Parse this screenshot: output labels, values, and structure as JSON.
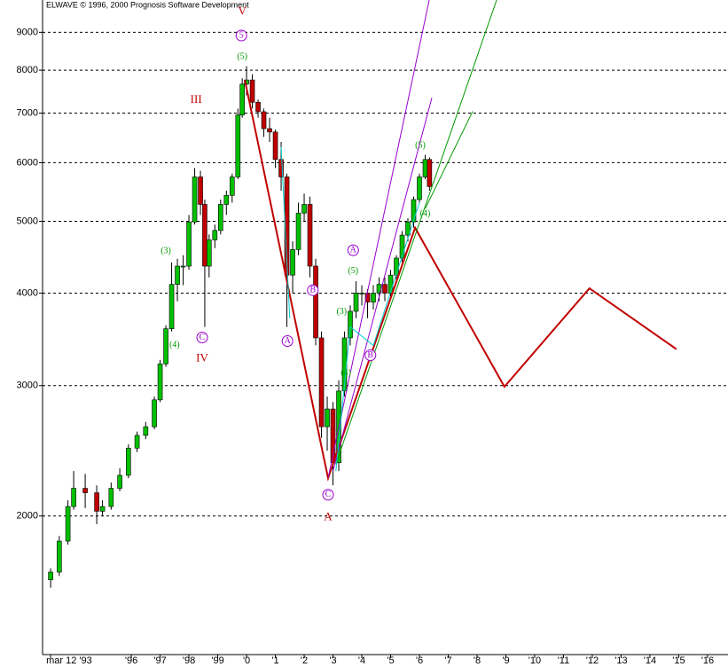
{
  "chart_data": {
    "type": "candlestick",
    "title": "ELWAVE © 1996, 2000 Prognosis Software Development",
    "log_scale": true,
    "grid": true,
    "up_color": "#00c000",
    "down_color": "#c00000",
    "xlim": [
      1992.92,
      2016.71
    ],
    "ylim": [
      1300,
      9950
    ],
    "yticks": [
      2000,
      3000,
      4000,
      5000,
      6000,
      7000,
      8000,
      9000
    ],
    "xticks": [
      {
        "value": 1993.2,
        "label": "mar 12 '93"
      },
      {
        "value": 1996,
        "label": "'96"
      },
      {
        "value": 1997,
        "label": "'97"
      },
      {
        "value": 1998,
        "label": "'98"
      },
      {
        "value": 1999,
        "label": "'99"
      },
      {
        "value": 2000,
        "label": "'0"
      },
      {
        "value": 2001,
        "label": "'1"
      },
      {
        "value": 2002,
        "label": "'2"
      },
      {
        "value": 2003,
        "label": "'3"
      },
      {
        "value": 2004,
        "label": "'4"
      },
      {
        "value": 2005,
        "label": "'5"
      },
      {
        "value": 2006,
        "label": "'6"
      },
      {
        "value": 2007,
        "label": "'7"
      },
      {
        "value": 2008,
        "label": "'8"
      },
      {
        "value": 2009,
        "label": "'9"
      },
      {
        "value": 2010,
        "label": "'10"
      },
      {
        "value": 2011,
        "label": "'11"
      },
      {
        "value": 2012,
        "label": "'12"
      },
      {
        "value": 2013,
        "label": "'13"
      },
      {
        "value": 2014,
        "label": "'14"
      },
      {
        "value": 2015,
        "label": "'15"
      },
      {
        "value": 2016,
        "label": "'16"
      }
    ],
    "x": [
      1993.2,
      1993.5,
      1993.8,
      1994.0,
      1994.4,
      1994.8,
      1995.0,
      1995.3,
      1995.6,
      1995.9,
      1996.2,
      1996.5,
      1996.8,
      1997.0,
      1997.2,
      1997.4,
      1997.6,
      1997.8,
      1998.0,
      1998.2,
      1998.4,
      1998.55,
      1998.7,
      1998.9,
      1999.1,
      1999.3,
      1999.5,
      1999.7,
      1999.85,
      2000.0,
      2000.2,
      2000.4,
      2000.6,
      2000.8,
      2001.0,
      2001.2,
      2001.4,
      2001.6,
      2001.8,
      2002.0,
      2002.2,
      2002.4,
      2002.6,
      2002.8,
      2003.0,
      2003.2,
      2003.4,
      2003.6,
      2003.8,
      2004.0,
      2004.2,
      2004.4,
      2004.6,
      2004.8,
      2005.0,
      2005.2,
      2005.4,
      2005.6,
      2005.8,
      2006.0,
      2006.2,
      2006.35
    ],
    "open": [
      1640,
      1680,
      1850,
      2060,
      2180,
      2150,
      2030,
      2060,
      2180,
      2270,
      2470,
      2570,
      2640,
      2870,
      3210,
      3580,
      4110,
      4350,
      4350,
      4990,
      5740,
      5270,
      4350,
      4720,
      4860,
      5270,
      5420,
      5740,
      6960,
      7660,
      7760,
      7240,
      7030,
      6670,
      6600,
      6060,
      5740,
      4230,
      4580,
      5130,
      5270,
      4350,
      3480,
      2640,
      2790,
      2360,
      2950,
      3480,
      3780,
      4000,
      4000,
      3890,
      4000,
      4110,
      4000,
      4230,
      4460,
      4790,
      4990,
      5350,
      5740,
      6060
    ],
    "high": [
      1700,
      1880,
      2100,
      2300,
      2280,
      2200,
      2100,
      2220,
      2320,
      2500,
      2600,
      2680,
      2900,
      3250,
      3620,
      4400,
      4450,
      4500,
      5100,
      5900,
      5850,
      5350,
      4800,
      4950,
      5350,
      5500,
      5800,
      7100,
      7800,
      8100,
      7900,
      7300,
      7100,
      6900,
      6650,
      6400,
      5800,
      4700,
      5300,
      5450,
      5400,
      4450,
      3550,
      2900,
      2850,
      3050,
      3550,
      3850,
      4150,
      4100,
      4050,
      4100,
      4200,
      4200,
      4300,
      4500,
      4850,
      5050,
      5400,
      5800,
      6150,
      6100
    ],
    "low": [
      1600,
      1660,
      1830,
      2040,
      2050,
      1950,
      2000,
      2040,
      2160,
      2250,
      2440,
      2540,
      2620,
      2850,
      3180,
      3550,
      3900,
      4100,
      4300,
      4950,
      5100,
      3600,
      4200,
      4600,
      4800,
      5100,
      5300,
      5700,
      6900,
      7400,
      7100,
      6900,
      6500,
      6400,
      5900,
      5500,
      3600,
      4000,
      4500,
      5000,
      4200,
      3400,
      2550,
      2450,
      2200,
      2300,
      2900,
      3400,
      3700,
      3850,
      3700,
      3800,
      3900,
      3900,
      3950,
      4150,
      4400,
      4700,
      4900,
      5300,
      5700,
      5500
    ],
    "close": [
      1680,
      1850,
      2060,
      2180,
      2150,
      2030,
      2060,
      2180,
      2270,
      2470,
      2570,
      2640,
      2870,
      3210,
      3580,
      4110,
      4350,
      4350,
      4990,
      5740,
      5270,
      4350,
      4720,
      4860,
      5270,
      5420,
      5740,
      6960,
      7660,
      7760,
      7240,
      7030,
      6670,
      6600,
      6060,
      5740,
      4230,
      4580,
      5130,
      5270,
      4350,
      3480,
      2640,
      2790,
      2360,
      2950,
      3480,
      3780,
      4000,
      4000,
      3890,
      4000,
      4110,
      4000,
      4230,
      4460,
      4790,
      4990,
      5350,
      5740,
      6060,
      5570
    ],
    "lines": [
      {
        "color": "#c00000",
        "x": [
          1999.94,
          2002.83,
          2005.85,
          2008.95,
          2011.9,
          2014.92
        ],
        "y": [
          7760,
          2250,
          4900,
          2990,
          4060,
          3360
        ]
      },
      {
        "color": "#9900cc",
        "x": [
          2002.83,
          2006.34
        ],
        "y": [
          2250,
          9950
        ]
      },
      {
        "color": "#9900cc",
        "x": [
          2003.0,
          2006.43
        ],
        "y": [
          2300,
          7340
        ]
      },
      {
        "color": "#009900",
        "x": [
          2003.1,
          2008.68
        ],
        "y": [
          2350,
          9950
        ]
      },
      {
        "color": "#009900",
        "x": [
          2006.2,
          2007.85
        ],
        "y": [
          5200,
          7040
        ]
      },
      {
        "color": "#00cccc",
        "x": [
          2001.2,
          2001.5
        ],
        "y": [
          6300,
          3700
        ]
      },
      {
        "color": "#00cccc",
        "x": [
          2003.1,
          2003.6,
          2004.4,
          2006.0
        ],
        "y": [
          2300,
          3600,
          3400,
          5300
        ]
      }
    ],
    "annotations": [
      {
        "text": "V",
        "x": 1999.85,
        "y": 9580,
        "color": "#c00000"
      },
      {
        "text": "III",
        "x": 1998.25,
        "y": 7290,
        "color": "#c00000"
      },
      {
        "text": "IV",
        "x": 1998.46,
        "y": 3260,
        "color": "#c00000"
      },
      {
        "text": "A",
        "x": 2002.83,
        "y": 1990,
        "color": "#c00000"
      },
      {
        "text": "(5)",
        "x": 1999.85,
        "y": 8340,
        "color": "#009900"
      },
      {
        "text": "(3)",
        "x": 1997.2,
        "y": 4555,
        "color": "#009900"
      },
      {
        "text": "(4)",
        "x": 1997.5,
        "y": 3400,
        "color": "#009900"
      },
      {
        "text": "(4)",
        "x": 2003.45,
        "y": 3120,
        "color": "#009900"
      },
      {
        "text": "(3)",
        "x": 2003.3,
        "y": 3770,
        "color": "#009900"
      },
      {
        "text": "(5)",
        "x": 2003.7,
        "y": 4280,
        "color": "#009900"
      },
      {
        "text": "(4)",
        "x": 2006.2,
        "y": 5115,
        "color": "#009900"
      },
      {
        "text": "(5)",
        "x": 2006.03,
        "y": 6330,
        "color": "#009900"
      },
      {
        "text": "A",
        "x": 2001.42,
        "y": 3446,
        "color": "#9900cc"
      },
      {
        "text": "B",
        "x": 2002.3,
        "y": 4036,
        "color": "#9900cc"
      },
      {
        "text": "C",
        "x": 2002.83,
        "y": 2137,
        "color": "#9900cc"
      },
      {
        "text": "A",
        "x": 2003.7,
        "y": 4570,
        "color": "#9900cc"
      },
      {
        "text": "B",
        "x": 2004.3,
        "y": 3297,
        "color": "#9900cc"
      },
      {
        "text": "C",
        "x": 1998.46,
        "y": 3484,
        "color": "#9900cc"
      },
      {
        "text": "5",
        "x": 1999.82,
        "y": 8910,
        "color": "#9900cc"
      }
    ]
  }
}
